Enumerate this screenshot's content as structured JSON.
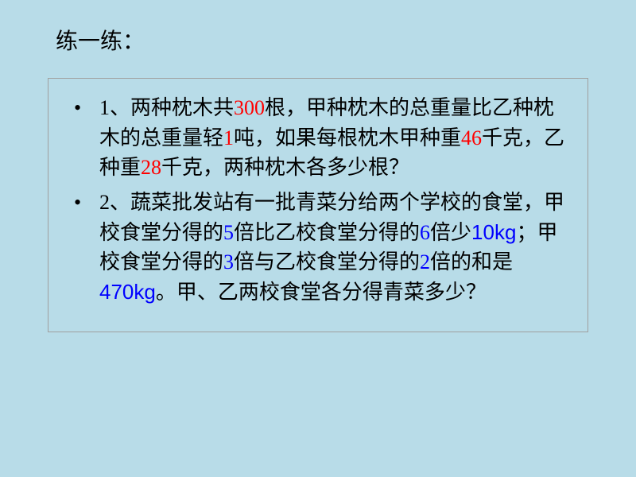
{
  "title": "练一练：",
  "problems": [
    {
      "bullet": "•",
      "parts": [
        {
          "text": "1、两种枕木共",
          "color": "black"
        },
        {
          "text": "300",
          "color": "red"
        },
        {
          "text": "根，甲种枕木的总重量比乙种枕木的总重量轻",
          "color": "black"
        },
        {
          "text": "1",
          "color": "red"
        },
        {
          "text": "吨，如果每根枕木甲种重",
          "color": "black"
        },
        {
          "text": "46",
          "color": "red"
        },
        {
          "text": "千克，乙种重",
          "color": "black"
        },
        {
          "text": "28",
          "color": "red"
        },
        {
          "text": "千克，两种枕木各多少根？",
          "color": "black"
        }
      ]
    },
    {
      "bullet": "•",
      "parts": [
        {
          "text": "2、蔬菜批发站有一批青菜分给两个学校的食堂，甲校食堂分得的",
          "color": "black"
        },
        {
          "text": "5",
          "color": "blue"
        },
        {
          "text": "倍比乙校食堂分得的",
          "color": "black"
        },
        {
          "text": "6",
          "color": "blue"
        },
        {
          "text": "倍少",
          "color": "black"
        },
        {
          "text": "10kg",
          "color": "blue",
          "en": true
        },
        {
          "text": "；甲校食堂分得的",
          "color": "black"
        },
        {
          "text": "3",
          "color": "blue"
        },
        {
          "text": "倍与乙校食堂分得的",
          "color": "black"
        },
        {
          "text": "2",
          "color": "blue"
        },
        {
          "text": "倍的和是",
          "color": "black"
        },
        {
          "text": "470kg",
          "color": "blue",
          "en": true
        },
        {
          "text": "。甲、乙两校食堂各分得青菜多少？",
          "color": "black"
        }
      ]
    }
  ],
  "colors": {
    "background": "#b8dce8",
    "text": "#000000",
    "red": "#ff0000",
    "blue": "#0000ff",
    "border": "#a0a0a0"
  },
  "typography": {
    "title_fontsize": 28,
    "body_fontsize": 26,
    "line_height": 1.45,
    "font_family": "SimSun"
  }
}
